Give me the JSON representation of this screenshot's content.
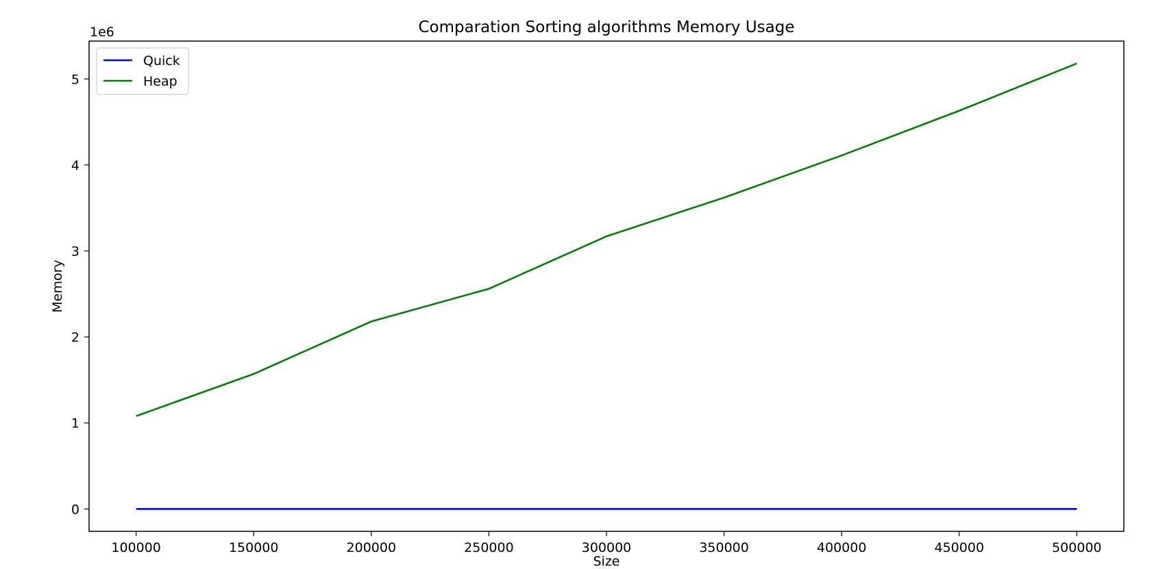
{
  "chart_data": {
    "type": "line",
    "title": "Comparation Sorting algorithms Memory Usage",
    "xlabel": "Size",
    "ylabel": "Memory",
    "y_offset_label": "1e6",
    "x": [
      100000,
      150000,
      200000,
      250000,
      300000,
      350000,
      400000,
      450000,
      500000
    ],
    "series": [
      {
        "name": "Quick",
        "color": "#0000ff",
        "values": [
          200,
          250,
          300,
          350,
          400,
          450,
          500,
          550,
          600
        ]
      },
      {
        "name": "Heap",
        "color": "#008000",
        "values": [
          1080000,
          1570000,
          2180000,
          2560000,
          3170000,
          3620000,
          4110000,
          4630000,
          5180000
        ]
      }
    ],
    "xlim": [
      80000,
      520000
    ],
    "ylim": [
      -260000,
      5440000
    ],
    "xticks": [
      100000,
      150000,
      200000,
      250000,
      300000,
      350000,
      400000,
      450000,
      500000
    ],
    "xtick_labels": [
      "100000",
      "150000",
      "200000",
      "250000",
      "300000",
      "350000",
      "400000",
      "450000",
      "500000"
    ],
    "yticks": [
      0,
      1000000,
      2000000,
      3000000,
      4000000,
      5000000
    ],
    "ytick_labels": [
      "0",
      "1",
      "2",
      "3",
      "4",
      "5"
    ],
    "grid": false,
    "legend_position": "upper-left"
  }
}
